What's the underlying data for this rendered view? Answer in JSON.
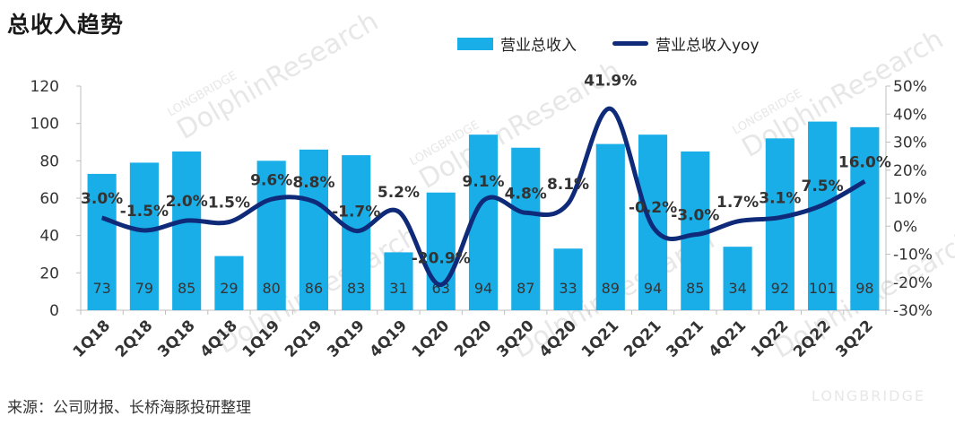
{
  "title": "总收入趋势",
  "source": "来源：公司财报、长桥海豚投研整理",
  "watermark": {
    "main": "DolphinResearch",
    "sub": "LONGBRIDGE"
  },
  "colors": {
    "bar": "#1aaee8",
    "line": "#0e2a78",
    "axis": "#bfbfbf",
    "text": "#333333"
  },
  "chart_data": {
    "type": "bar",
    "title": "总收入趋势",
    "categories": [
      "1Q18",
      "2Q18",
      "3Q18",
      "4Q18",
      "1Q19",
      "2Q19",
      "3Q19",
      "4Q19",
      "1Q20",
      "2Q20",
      "3Q20",
      "4Q20",
      "1Q21",
      "2Q21",
      "3Q21",
      "4Q21",
      "1Q22",
      "2Q22",
      "3Q22"
    ],
    "series": [
      {
        "name": "营业总收入",
        "type": "bar",
        "axis": "left",
        "values": [
          73,
          79,
          85,
          29,
          80,
          86,
          83,
          31,
          63,
          94,
          87,
          33,
          89,
          94,
          85,
          34,
          92,
          101,
          98
        ],
        "labels": [
          "73",
          "79",
          "85",
          "29",
          "80",
          "86",
          "83",
          "31",
          "63",
          "94",
          "87",
          "33",
          "89",
          "94",
          "85",
          "34",
          "92",
          "101",
          "98"
        ]
      },
      {
        "name": "营业总收入yoy",
        "type": "line",
        "axis": "right",
        "values": [
          3.0,
          -1.5,
          2.0,
          1.5,
          9.6,
          8.8,
          -1.7,
          5.2,
          -20.9,
          9.1,
          4.8,
          8.1,
          41.9,
          -0.2,
          -3.0,
          1.7,
          3.1,
          7.5,
          16.0
        ],
        "labels": [
          "3.0%",
          "-1.5%",
          "2.0%",
          "1.5%",
          "9.6%",
          "8.8%",
          "-1.7%",
          "5.2%",
          "-20.9%",
          "9.1%",
          "4.8%",
          "8.1%",
          "41.9%",
          "-0.2%",
          "-3.0%",
          "1.7%",
          "3.1%",
          "7.5%",
          "16.0%"
        ]
      }
    ],
    "y_left": {
      "min": 0,
      "max": 120,
      "ticks": [
        "0",
        "20",
        "40",
        "60",
        "80",
        "100",
        "120"
      ]
    },
    "y_right": {
      "min": -30,
      "max": 50,
      "ticks": [
        "-30%",
        "-20%",
        "-10%",
        "0%",
        "10%",
        "20%",
        "30%",
        "40%",
        "50%"
      ]
    },
    "grid": false,
    "legend_position": "top-right"
  }
}
